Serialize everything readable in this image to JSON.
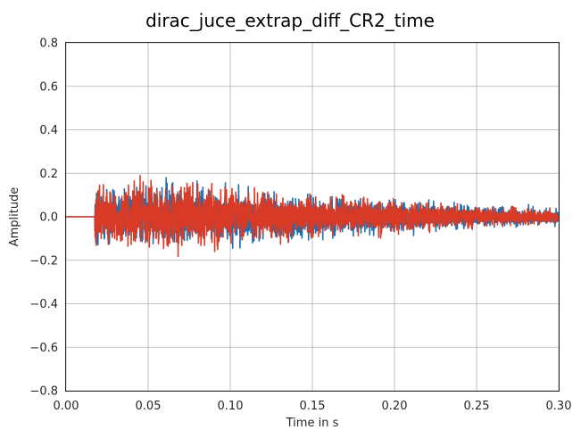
{
  "chart_data": {
    "type": "line",
    "title": "dirac_juce_extrap_diff_CR2_time",
    "xlabel": "Time in s",
    "ylabel": "Amplitude",
    "xlim": [
      0.0,
      0.3
    ],
    "ylim": [
      -0.8,
      0.8
    ],
    "xticks": [
      "0.00",
      "0.05",
      "0.10",
      "0.15",
      "0.20",
      "0.25",
      "0.30"
    ],
    "xtick_values": [
      0.0,
      0.05,
      0.1,
      0.15,
      0.2,
      0.25,
      0.3
    ],
    "yticks": [
      "−0.8",
      "−0.6",
      "−0.4",
      "−0.2",
      "0.0",
      "0.2",
      "0.4",
      "0.6",
      "0.8"
    ],
    "ytick_values": [
      -0.8,
      -0.6,
      -0.4,
      -0.2,
      0.0,
      0.2,
      0.4,
      0.6,
      0.8
    ],
    "grid": true,
    "legend": "none",
    "series": [
      {
        "color": "#1f6fb0",
        "onset": 0.0175,
        "peak_envelope": [
          [
            0.0175,
            0.19
          ],
          [
            0.06,
            0.19
          ],
          [
            0.1,
            0.16
          ],
          [
            0.15,
            0.12
          ],
          [
            0.2,
            0.1
          ],
          [
            0.25,
            0.07
          ],
          [
            0.3,
            0.05
          ]
        ]
      },
      {
        "color": "#d93a25",
        "onset": 0.0175,
        "peak_envelope": [
          [
            0.0175,
            0.19
          ],
          [
            0.07,
            0.2
          ],
          [
            0.1,
            0.16
          ],
          [
            0.15,
            0.12
          ],
          [
            0.2,
            0.1
          ],
          [
            0.25,
            0.06
          ],
          [
            0.3,
            0.04
          ]
        ]
      }
    ]
  }
}
